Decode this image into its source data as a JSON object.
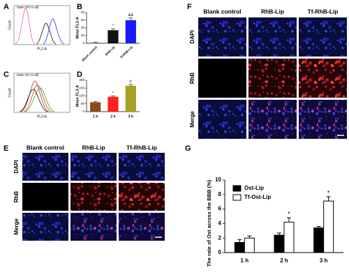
{
  "chart_data": [
    {
      "type": "flow",
      "panel": "A",
      "title": "Gate: (P1 in all)",
      "xlabel": "FL2-A",
      "ylabel": "Count"
    },
    {
      "type": "bar",
      "panel": "B",
      "ylabel": "Mean FL2-A",
      "categories": [
        "Blank control",
        "RhB-Lip",
        "Tf-RhB-Lip"
      ],
      "values": [
        1,
        17,
        30
      ],
      "errors": [
        0.5,
        2,
        3
      ],
      "colors": [
        "#e060c0",
        "#111111",
        "#1a1aff"
      ],
      "annotations": [
        null,
        "*",
        "&&"
      ],
      "ylim": [
        0,
        40
      ],
      "yticks": [
        0,
        10,
        20,
        30,
        40
      ],
      "rotate_labels": true
    },
    {
      "type": "flow",
      "panel": "C",
      "title": "Gate: (P1 in all)",
      "xlabel": "FL2-A",
      "ylabel": "Count"
    },
    {
      "type": "bar",
      "panel": "D",
      "ylabel": "Mean FL2-A",
      "categories": [
        "1 h",
        "2 h",
        "3 h"
      ],
      "values": [
        60,
        95,
        165
      ],
      "errors": [
        4,
        5,
        8
      ],
      "colors": [
        "#8b4a1c",
        "#ff2020",
        "#a8a020"
      ],
      "annotations": [
        null,
        "*",
        "#"
      ],
      "ylim": [
        0,
        200
      ],
      "yticks": [
        0,
        50,
        100,
        150,
        200
      ],
      "rotate_labels": false
    },
    {
      "type": "image-grid",
      "panel": "E",
      "columns": [
        "Blank control",
        "RhB-Lip",
        "Tf-RhB-Lip"
      ],
      "rows": [
        "DAPI",
        "RhB",
        "Merge"
      ]
    },
    {
      "type": "image-grid",
      "panel": "F",
      "columns": [
        "Blank control",
        "RhB-Lip",
        "Tf-RhB-Lip"
      ],
      "rows": [
        "DAPI",
        "RhB",
        "Merge"
      ]
    },
    {
      "type": "grouped-bar",
      "panel": "G",
      "ylabel": "The rate of Ost across the BBB (%)",
      "categories": [
        "1 h",
        "2 h",
        "3 h"
      ],
      "series": [
        {
          "name": "Ost-Lip",
          "color": "#000000",
          "values": [
            1.4,
            2.4,
            3.4
          ],
          "errors": [
            0.4,
            0.3,
            0.2
          ]
        },
        {
          "name": "Tf-Ost-Lip",
          "color": "#ffffff",
          "values": [
            2.0,
            4.2,
            7.1
          ],
          "errors": [
            0.3,
            0.6,
            0.6
          ]
        }
      ],
      "annotations": [
        null,
        "*",
        "*"
      ],
      "ylim": [
        0,
        10
      ],
      "yticks": [
        0,
        2,
        4,
        6,
        8,
        10
      ]
    }
  ]
}
